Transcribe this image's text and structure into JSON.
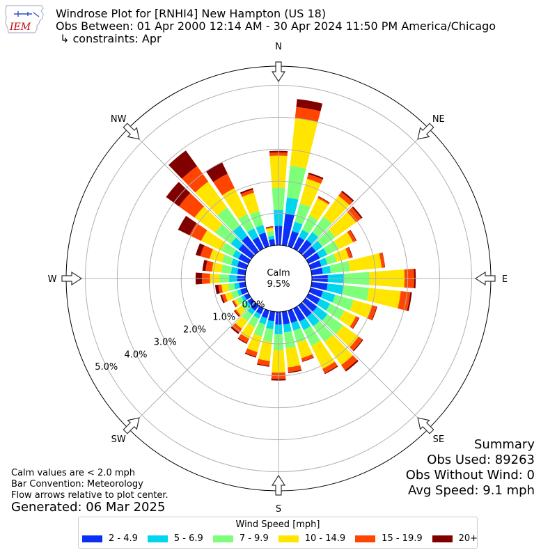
{
  "title": {
    "line1": "Windrose Plot for [RNHI4] New Hampton (US 18)",
    "line2": "Obs Between: 01 Apr 2000 12:14 AM - 30 Apr 2024 11:50 PM America/Chicago",
    "line3": "↳ constraints: Apr"
  },
  "logo": {
    "text": "IEM",
    "icon": "iowa-state-outline-icon"
  },
  "notes": {
    "calm_note": "Calm values are < 2.0 mph",
    "bar_convention": "Bar Convention: Meteorology",
    "flow_arrows": "Flow arrows relative to plot center.",
    "generated": "Generated: 06 Mar 2025"
  },
  "summary": {
    "heading": "Summary",
    "obs_used": "Obs Used: 89263",
    "obs_without_wind": "Obs Without Wind: 0",
    "avg_speed": "Avg Speed: 9.1 mph"
  },
  "chart_data": {
    "type": "windrose",
    "calm_label": "Calm",
    "calm_percent": "9.5%",
    "radial_tick_labels": [
      "0.0%",
      "1.0%",
      "2.0%",
      "3.0%",
      "4.0%",
      "5.0%"
    ],
    "radial_ticks": [
      0,
      1,
      2,
      3,
      4,
      5
    ],
    "radial_max": 5.6,
    "directions": [
      "N",
      "NE",
      "E",
      "SE",
      "S",
      "SW",
      "W",
      "NW"
    ],
    "legend_title": "Wind Speed [mph]",
    "speed_bins": [
      {
        "label": "2 - 4.9",
        "color": "#0c2ff7"
      },
      {
        "label": "5 - 6.9",
        "color": "#00d5f0"
      },
      {
        "label": "7 - 9.9",
        "color": "#7dff7a"
      },
      {
        "label": "10 - 14.9",
        "color": "#ffe500"
      },
      {
        "label": "15 - 19.9",
        "color": "#ff4500"
      },
      {
        "label": "20+",
        "color": "#800000"
      }
    ],
    "sector_width_deg": 10,
    "sectors": [
      {
        "dir": 0,
        "values": [
          0.6,
          0.5,
          0.7,
          1.0,
          0.1,
          0.05
        ]
      },
      {
        "dir": 10,
        "values": [
          1.0,
          0.5,
          1.0,
          1.5,
          0.35,
          0.25
        ]
      },
      {
        "dir": 20,
        "values": [
          0.5,
          0.3,
          0.6,
          0.8,
          0.15,
          0.05
        ]
      },
      {
        "dir": 30,
        "values": [
          0.4,
          0.25,
          0.5,
          0.6,
          0.05,
          0.02
        ]
      },
      {
        "dir": 40,
        "values": [
          0.45,
          0.3,
          0.6,
          0.8,
          0.15,
          0.05
        ]
      },
      {
        "dir": 50,
        "values": [
          0.4,
          0.25,
          0.5,
          0.8,
          0.2,
          0.05
        ]
      },
      {
        "dir": 60,
        "values": [
          0.4,
          0.25,
          0.4,
          0.5,
          0.1,
          0.02
        ]
      },
      {
        "dir": 70,
        "values": [
          0.35,
          0.2,
          0.3,
          0.4,
          0.1,
          0.02
        ]
      },
      {
        "dir": 80,
        "values": [
          0.35,
          0.25,
          0.6,
          1.0,
          0.1,
          0.01
        ]
      },
      {
        "dir": 90,
        "values": [
          0.5,
          0.5,
          0.8,
          1.1,
          0.3,
          0.05
        ]
      },
      {
        "dir": 100,
        "values": [
          0.5,
          0.5,
          0.8,
          1.0,
          0.3,
          0.05
        ]
      },
      {
        "dir": 110,
        "values": [
          0.4,
          0.4,
          0.6,
          0.6,
          0.15,
          0.02
        ]
      },
      {
        "dir": 120,
        "values": [
          0.4,
          0.35,
          0.5,
          0.4,
          0.1,
          0.02
        ]
      },
      {
        "dir": 130,
        "values": [
          0.45,
          0.4,
          0.6,
          0.6,
          0.15,
          0.03
        ]
      },
      {
        "dir": 140,
        "values": [
          0.45,
          0.35,
          0.6,
          0.9,
          0.2,
          0.05
        ]
      },
      {
        "dir": 150,
        "values": [
          0.45,
          0.3,
          0.55,
          0.8,
          0.15,
          0.03
        ]
      },
      {
        "dir": 160,
        "values": [
          0.4,
          0.25,
          0.4,
          0.5,
          0.1,
          0.02
        ]
      },
      {
        "dir": 170,
        "values": [
          0.4,
          0.25,
          0.5,
          0.6,
          0.15,
          0.03
        ]
      },
      {
        "dir": 180,
        "values": [
          0.4,
          0.3,
          0.5,
          0.7,
          0.2,
          0.05
        ]
      },
      {
        "dir": 190,
        "values": [
          0.3,
          0.25,
          0.4,
          0.6,
          0.15,
          0.03
        ]
      },
      {
        "dir": 200,
        "values": [
          0.25,
          0.2,
          0.4,
          0.5,
          0.15,
          0.03
        ]
      },
      {
        "dir": 210,
        "values": [
          0.2,
          0.15,
          0.3,
          0.4,
          0.15,
          0.03
        ]
      },
      {
        "dir": 220,
        "values": [
          0.2,
          0.15,
          0.25,
          0.3,
          0.15,
          0.05
        ]
      },
      {
        "dir": 230,
        "values": [
          0.15,
          0.1,
          0.15,
          0.2,
          0.05,
          0.03
        ]
      },
      {
        "dir": 240,
        "values": [
          0.15,
          0.1,
          0.15,
          0.1,
          0.05,
          0.02
        ]
      },
      {
        "dir": 250,
        "values": [
          0.2,
          0.1,
          0.2,
          0.2,
          0.1,
          0.05
        ]
      },
      {
        "dir": 260,
        "values": [
          0.2,
          0.15,
          0.2,
          0.2,
          0.1,
          0.1
        ]
      },
      {
        "dir": 270,
        "values": [
          0.25,
          0.25,
          0.3,
          0.3,
          0.25,
          0.2
        ]
      },
      {
        "dir": 280,
        "values": [
          0.25,
          0.2,
          0.3,
          0.3,
          0.2,
          0.1
        ]
      },
      {
        "dir": 290,
        "values": [
          0.3,
          0.2,
          0.3,
          0.4,
          0.3,
          0.15
        ]
      },
      {
        "dir": 300,
        "values": [
          0.35,
          0.2,
          0.4,
          0.7,
          0.4,
          0.4
        ]
      },
      {
        "dir": 310,
        "values": [
          0.5,
          0.3,
          0.6,
          0.8,
          0.6,
          0.5
        ]
      },
      {
        "dir": 320,
        "values": [
          0.6,
          0.4,
          0.7,
          1.0,
          0.6,
          0.6
        ]
      },
      {
        "dir": 330,
        "values": [
          0.4,
          0.3,
          0.5,
          0.9,
          0.5,
          0.4
        ]
      },
      {
        "dir": 340,
        "values": [
          0.45,
          0.25,
          0.45,
          0.6,
          0.1,
          0.05
        ]
      },
      {
        "dir": 350,
        "values": [
          0.2,
          0.1,
          0.15,
          0.1,
          0.03,
          0.02
        ]
      }
    ]
  }
}
